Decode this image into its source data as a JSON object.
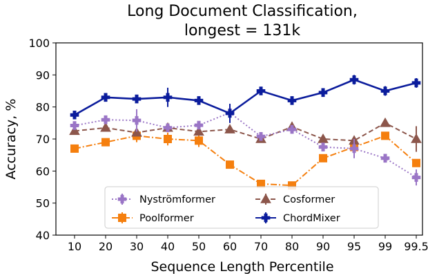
{
  "chart_data": {
    "type": "line",
    "title_lines": [
      "Long Document Classification,",
      "longest = 131k"
    ],
    "xlabel": "Sequence Length Percentile",
    "ylabel": "Accuracy, %",
    "categories": [
      "10",
      "20",
      "30",
      "40",
      "50",
      "60",
      "70",
      "80",
      "90",
      "95",
      "99",
      "99.5"
    ],
    "ylim": [
      40,
      100
    ],
    "yticks": [
      40,
      50,
      60,
      70,
      80,
      90,
      100
    ],
    "grid": false,
    "legend_position": "lower-center",
    "series": [
      {
        "name": "Nyströmformer",
        "color": "#9a75c6",
        "linestyle": "dotted",
        "marker": "plus-thick",
        "values": [
          74.2,
          76.0,
          75.8,
          73.5,
          74.3,
          78.2,
          70.8,
          73.0,
          67.5,
          67.0,
          64.0,
          58.0
        ],
        "errors": [
          1.0,
          0.8,
          3.5,
          1.0,
          0.8,
          0.8,
          0.5,
          1.0,
          1.0,
          3.0,
          0.5,
          2.5
        ]
      },
      {
        "name": "Cosformer",
        "color": "#8c564b",
        "linestyle": "dashed",
        "marker": "triangle",
        "values": [
          72.5,
          73.5,
          72.0,
          73.5,
          72.3,
          73.0,
          70.0,
          73.8,
          70.0,
          69.5,
          75.0,
          70.0
        ],
        "errors": [
          1.0,
          0.8,
          0.8,
          1.0,
          0.8,
          0.8,
          0.5,
          1.5,
          0.5,
          0.5,
          1.0,
          4.0
        ]
      },
      {
        "name": "Poolformer",
        "color": "#f57f0e",
        "linestyle": "dashdot",
        "marker": "square",
        "values": [
          67.0,
          69.0,
          71.0,
          70.0,
          69.5,
          62.0,
          56.0,
          55.5,
          64.0,
          67.5,
          71.0,
          62.5
        ],
        "errors": [
          0.8,
          0.8,
          2.0,
          2.0,
          2.0,
          0.8,
          0.5,
          0.8,
          0.8,
          0.8,
          0.8,
          1.2
        ]
      },
      {
        "name": "ChordMixer",
        "color": "#0b1c9c",
        "linestyle": "solid",
        "marker": "plus-thick",
        "values": [
          77.5,
          83.0,
          82.5,
          83.0,
          82.0,
          78.0,
          85.0,
          82.0,
          84.5,
          88.5,
          85.0,
          87.5
        ],
        "errors": [
          1.0,
          0.8,
          0.8,
          3.0,
          0.8,
          3.0,
          1.0,
          0.8,
          0.8,
          1.5,
          1.5,
          1.5
        ]
      }
    ],
    "legend_order": [
      "Nyströmformer",
      "Cosformer",
      "Poolformer",
      "ChordMixer"
    ]
  }
}
